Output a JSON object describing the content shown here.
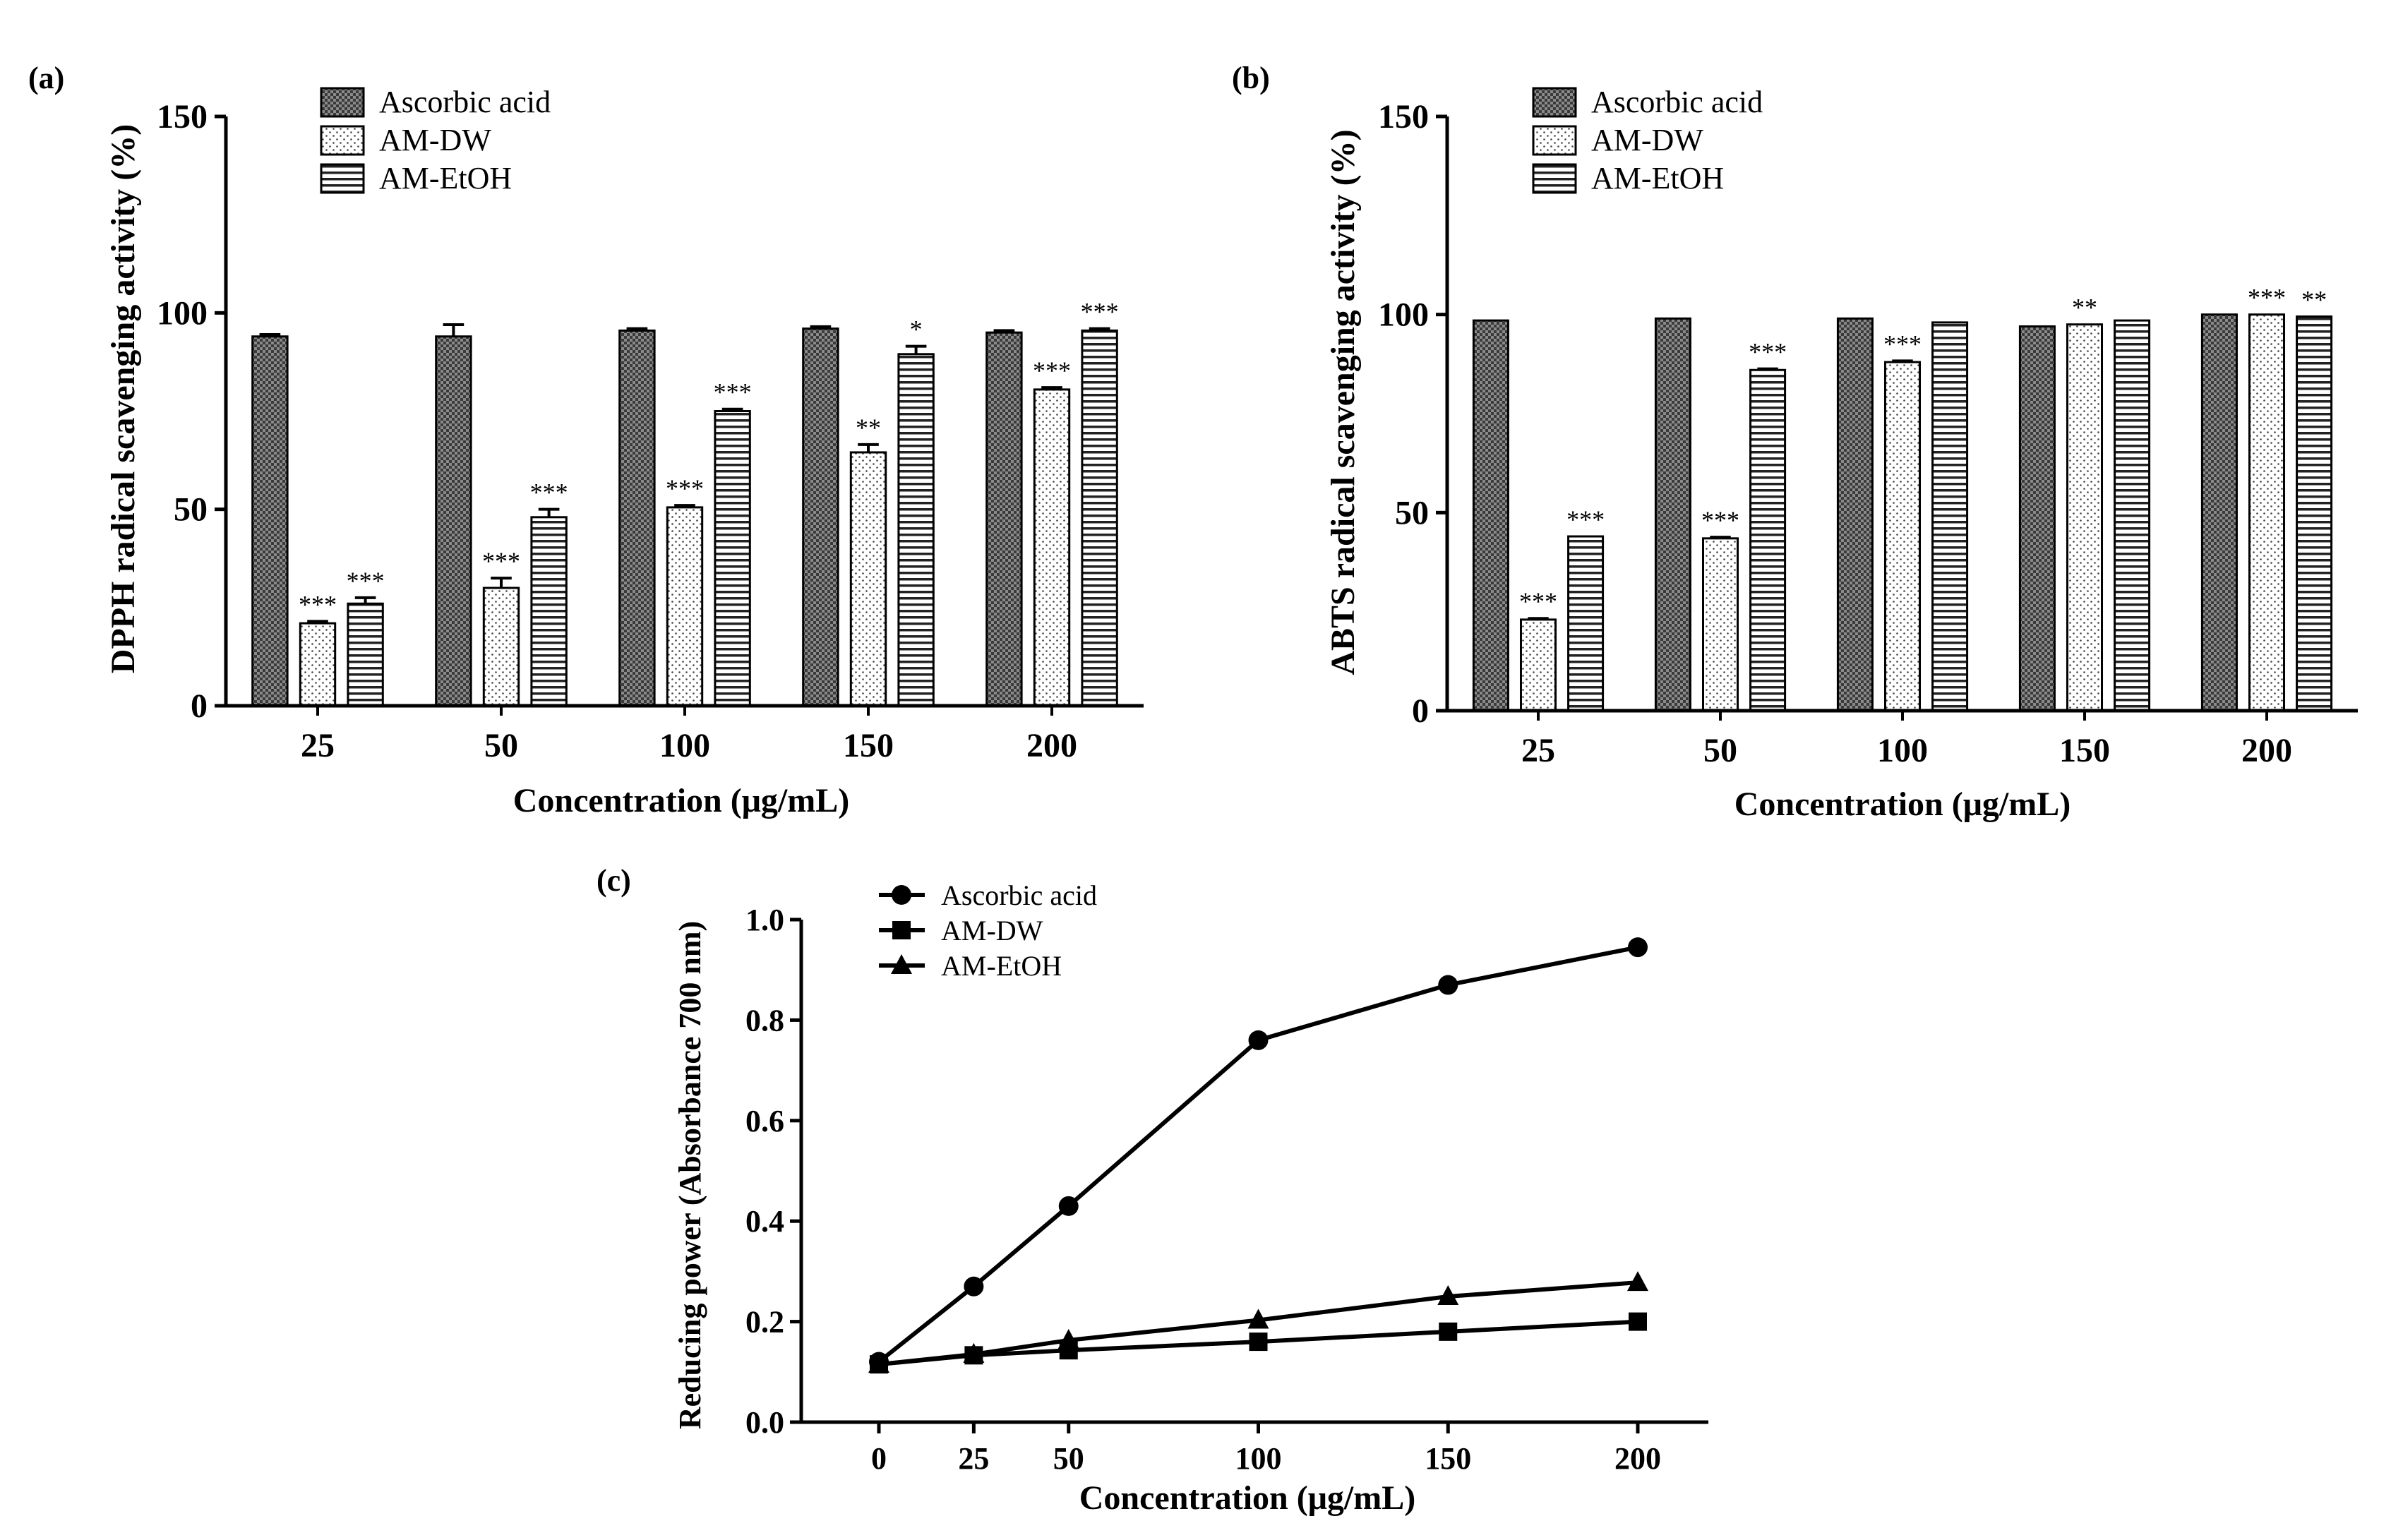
{
  "legend_entries": [
    "Ascorbic acid",
    "AM-DW",
    "AM-EtOH"
  ],
  "chart_data": [
    {
      "panel": "(a)",
      "type": "bar",
      "ylabel": "DPPH radical scavenging activity (%)",
      "xlabel": "Concentration (μg/mL)",
      "categories": [
        "25",
        "50",
        "100",
        "150",
        "200"
      ],
      "ylim": [
        0,
        150
      ],
      "yticks": [
        "0",
        "50",
        "100",
        "150"
      ],
      "series": [
        {
          "name": "Ascorbic acid",
          "values": [
            94,
            94,
            95.5,
            96,
            95
          ],
          "errors": [
            0.5,
            3,
            0.5,
            0.5,
            0.5
          ],
          "sig": [
            "",
            "",
            "",
            "",
            ""
          ]
        },
        {
          "name": "AM-DW",
          "values": [
            21,
            30,
            50.5,
            64.5,
            80.5
          ],
          "errors": [
            0.5,
            2.5,
            0.5,
            2,
            0.5
          ],
          "sig": [
            "***",
            "***",
            "***",
            "**",
            "***"
          ]
        },
        {
          "name": "AM-EtOH",
          "values": [
            26,
            48,
            75,
            89.5,
            95.5
          ],
          "errors": [
            1.5,
            2,
            0.5,
            2,
            0.5
          ],
          "sig": [
            "***",
            "***",
            "***",
            "*",
            "***"
          ]
        }
      ]
    },
    {
      "panel": "(b)",
      "type": "bar",
      "ylabel": "ABTS radical scavenging activity (%)",
      "xlabel": "Concentration (μg/mL)",
      "categories": [
        "25",
        "50",
        "100",
        "150",
        "200"
      ],
      "ylim": [
        0,
        150
      ],
      "yticks": [
        "0",
        "50",
        "100",
        "150"
      ],
      "series": [
        {
          "name": "Ascorbic acid",
          "values": [
            98.5,
            99,
            99,
            97,
            100
          ],
          "errors": [
            0,
            0,
            0,
            0,
            0
          ],
          "sig": [
            "",
            "",
            "",
            "",
            ""
          ]
        },
        {
          "name": "AM-DW",
          "values": [
            23,
            43.5,
            88,
            97.5,
            100
          ],
          "errors": [
            0.3,
            0.3,
            0.3,
            0,
            0
          ],
          "sig": [
            "***",
            "***",
            "***",
            "**",
            "***"
          ]
        },
        {
          "name": "AM-EtOH",
          "values": [
            44,
            86,
            98,
            98.5,
            99.5
          ],
          "errors": [
            0,
            0.3,
            0,
            0,
            0
          ],
          "sig": [
            "***",
            "***",
            "",
            "",
            "**"
          ]
        }
      ]
    },
    {
      "panel": "(c)",
      "type": "line",
      "ylabel": "Reducing power (Absorbance 700 nm)",
      "xlabel": "Concentration (μg/mL)",
      "x": [
        0,
        25,
        50,
        100,
        150,
        200
      ],
      "xticks": [
        "0",
        "25",
        "50",
        "100",
        "150",
        "200"
      ],
      "ylim": [
        0,
        1.0
      ],
      "yticks": [
        "0.0",
        "0.2",
        "0.4",
        "0.6",
        "0.8",
        "1.0"
      ],
      "series": [
        {
          "name": "Ascorbic acid",
          "marker": "circle",
          "values": [
            0.12,
            0.27,
            0.43,
            0.76,
            0.87,
            0.945
          ]
        },
        {
          "name": "AM-DW",
          "marker": "square",
          "values": [
            0.115,
            0.133,
            0.143,
            0.16,
            0.18,
            0.2
          ]
        },
        {
          "name": "AM-EtOH",
          "marker": "triangle",
          "values": [
            0.115,
            0.135,
            0.163,
            0.203,
            0.25,
            0.278
          ]
        }
      ]
    }
  ]
}
